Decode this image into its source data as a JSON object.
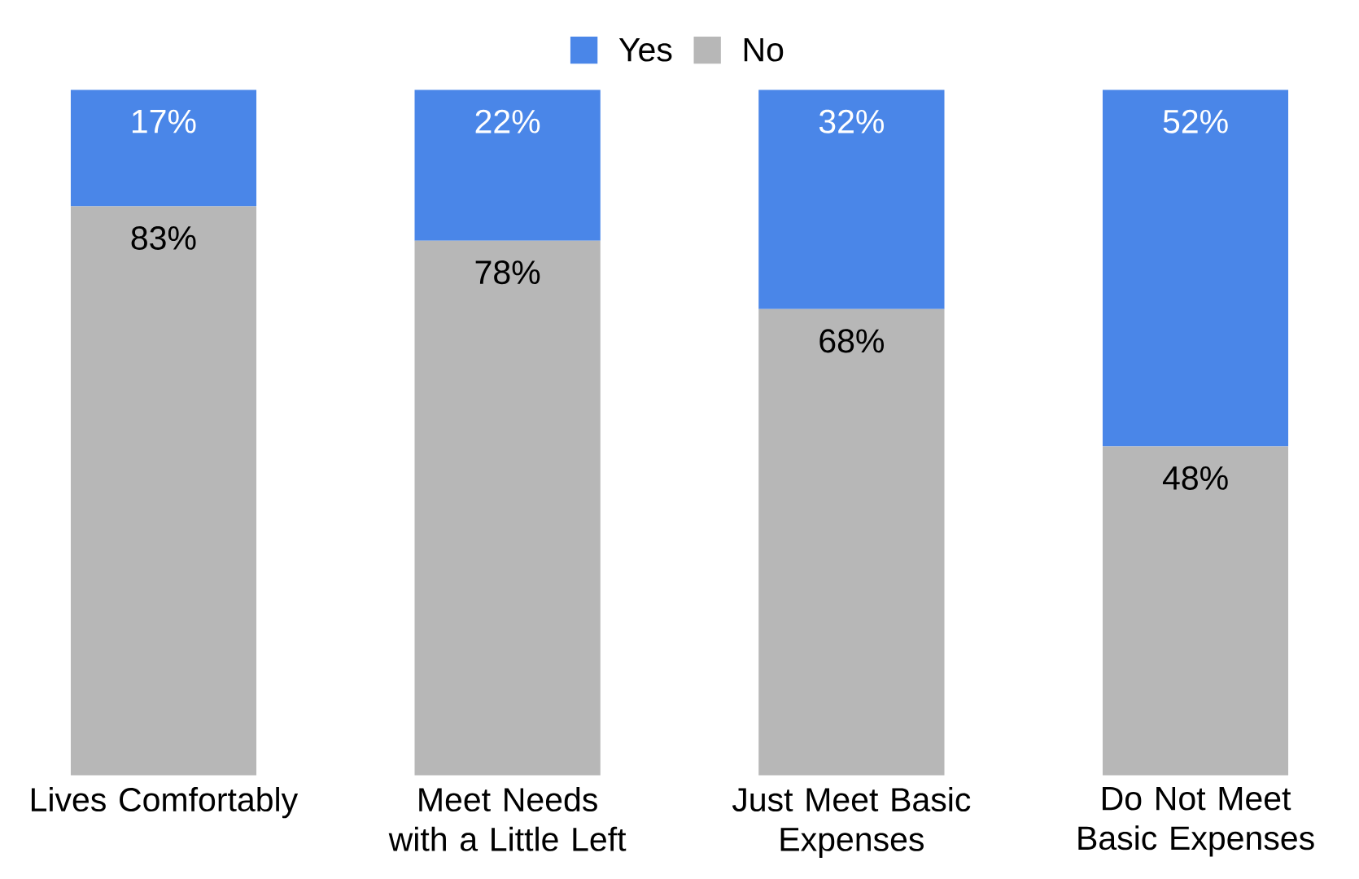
{
  "chart_data": {
    "type": "bar",
    "stacked": true,
    "legend": "top",
    "categories": [
      "Lives Comfortably",
      "Meet Needs with a Little Left",
      "Just Meet Basic Expenses",
      "Do Not Meet Basic Expenses"
    ],
    "series": [
      {
        "name": "No",
        "color": "#b7b7b7",
        "values": [
          83,
          78,
          68,
          48
        ],
        "value_labels": [
          "83%",
          "78%",
          "68%",
          "48%"
        ]
      },
      {
        "name": "Yes",
        "color": "#4a86e8",
        "values": [
          17,
          22,
          32,
          52
        ],
        "value_labels": [
          "17%",
          "22%",
          "32%",
          "52%"
        ]
      }
    ]
  }
}
